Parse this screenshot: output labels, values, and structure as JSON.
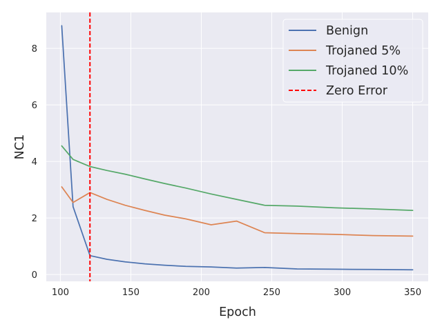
{
  "chart_data": {
    "type": "line",
    "xlabel": "Epoch",
    "ylabel": "NC1",
    "xlim": [
      90,
      361
    ],
    "ylim": [
      -0.24,
      9.27
    ],
    "xticks": [
      100,
      150,
      200,
      250,
      300,
      350
    ],
    "yticks": [
      0,
      2,
      4,
      6,
      8
    ],
    "grid": true,
    "legend_position": "top-right",
    "series": [
      {
        "name": "Benign",
        "color": "#4c72b0",
        "style": "solid",
        "x": [
          101,
          109,
          121,
          133,
          146,
          160,
          174,
          189,
          207,
          225,
          245,
          268,
          295,
          322,
          350
        ],
        "y": [
          8.8,
          2.4,
          0.67,
          0.54,
          0.45,
          0.38,
          0.33,
          0.29,
          0.27,
          0.23,
          0.25,
          0.2,
          0.19,
          0.18,
          0.17
        ]
      },
      {
        "name": "Trojaned 5%",
        "color": "#dd8452",
        "style": "solid",
        "x": [
          101,
          109,
          121,
          133,
          146,
          160,
          174,
          189,
          207,
          225,
          245,
          268,
          295,
          322,
          350
        ],
        "y": [
          3.1,
          2.55,
          2.9,
          2.66,
          2.45,
          2.27,
          2.1,
          1.97,
          1.76,
          1.89,
          1.48,
          1.45,
          1.42,
          1.38,
          1.36
        ]
      },
      {
        "name": "Trojaned 10%",
        "color": "#55a868",
        "style": "solid",
        "x": [
          101,
          109,
          121,
          133,
          146,
          160,
          174,
          189,
          207,
          225,
          245,
          268,
          295,
          322,
          350
        ],
        "y": [
          4.55,
          4.07,
          3.82,
          3.68,
          3.55,
          3.38,
          3.22,
          3.06,
          2.85,
          2.66,
          2.45,
          2.42,
          2.36,
          2.32,
          2.27
        ]
      }
    ],
    "reference_lines": [
      {
        "name": "Zero Error",
        "orientation": "vertical",
        "x": 121,
        "color": "#ff0000",
        "style": "dashed"
      }
    ]
  }
}
